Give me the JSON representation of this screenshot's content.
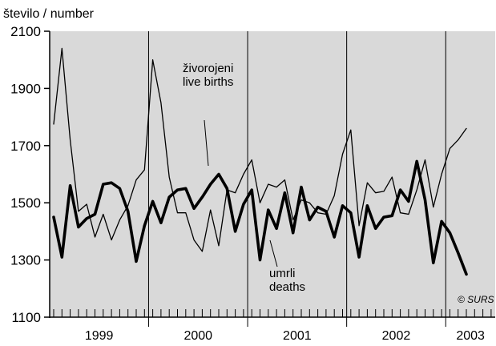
{
  "chart_data": {
    "type": "line",
    "ylabel": "število / number",
    "ylim": [
      1100,
      2100
    ],
    "yticks": [
      1100,
      1300,
      1500,
      1700,
      1900,
      2100
    ],
    "year_labels": [
      "1999",
      "2000",
      "2001",
      "2002",
      "2003"
    ],
    "x_months": [
      "1999-01",
      "1999-02",
      "1999-03",
      "1999-04",
      "1999-05",
      "1999-06",
      "1999-07",
      "1999-08",
      "1999-09",
      "1999-10",
      "1999-11",
      "1999-12",
      "2000-01",
      "2000-02",
      "2000-03",
      "2000-04",
      "2000-05",
      "2000-06",
      "2000-07",
      "2000-08",
      "2000-09",
      "2000-10",
      "2000-11",
      "2000-12",
      "2001-01",
      "2001-02",
      "2001-03",
      "2001-04",
      "2001-05",
      "2001-06",
      "2001-07",
      "2001-08",
      "2001-09",
      "2001-10",
      "2001-11",
      "2001-12",
      "2002-01",
      "2002-02",
      "2002-03",
      "2002-04",
      "2002-05",
      "2002-06",
      "2002-07",
      "2002-08",
      "2002-09",
      "2002-10",
      "2002-11",
      "2002-12",
      "2003-01",
      "2003-02",
      "2003-03",
      "2003-04",
      "2003-05",
      "2003-06"
    ],
    "background_color": "#d9d9d9",
    "series": [
      {
        "name": "živorojeni live births",
        "stroke": "thin",
        "values": [
          1775,
          2040,
          1720,
          1470,
          1495,
          1380,
          1460,
          1370,
          1440,
          1490,
          1580,
          1615,
          2000,
          1850,
          1590,
          1465,
          1465,
          1370,
          1330,
          1475,
          1350,
          1545,
          1535,
          1600,
          1650,
          1500,
          1565,
          1555,
          1580,
          1440,
          1510,
          1500,
          1465,
          1460,
          1525,
          1670,
          1755,
          1420,
          1570,
          1535,
          1540,
          1590,
          1465,
          1460,
          1545,
          1650,
          1485,
          1600,
          1690,
          1720,
          1760,
          null,
          null,
          null
        ]
      },
      {
        "name": "umrli deaths",
        "stroke": "thick",
        "values": [
          1450,
          1310,
          1560,
          1415,
          1445,
          1460,
          1565,
          1570,
          1550,
          1470,
          1295,
          1420,
          1505,
          1430,
          1520,
          1545,
          1550,
          1480,
          1520,
          1565,
          1600,
          1550,
          1400,
          1495,
          1545,
          1300,
          1475,
          1410,
          1535,
          1395,
          1555,
          1440,
          1485,
          1470,
          1380,
          1490,
          1465,
          1310,
          1490,
          1410,
          1450,
          1455,
          1545,
          1505,
          1645,
          1510,
          1290,
          1435,
          1395,
          1325,
          1250,
          null,
          null,
          null
        ]
      }
    ],
    "annotations": [
      {
        "text": "živorojeni"
      },
      {
        "text": "live births"
      },
      {
        "text": "umrli"
      },
      {
        "text": "deaths"
      },
      {
        "text": "© SURS"
      }
    ]
  }
}
